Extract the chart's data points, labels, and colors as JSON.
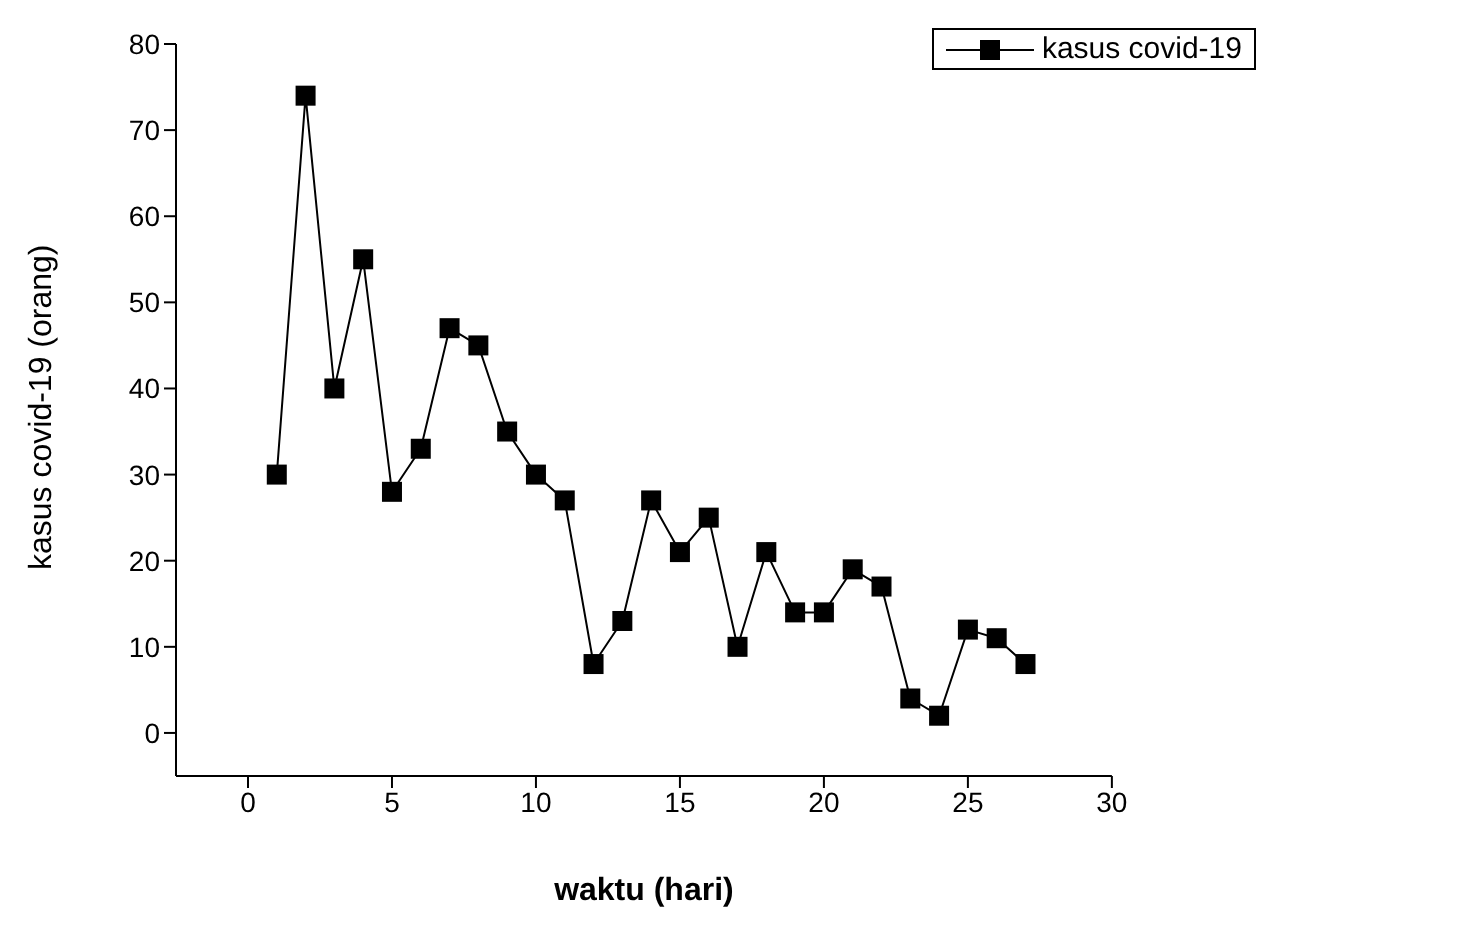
{
  "chart_data": {
    "type": "line",
    "xlabel": "waktu (hari)",
    "ylabel": "kasus covid-19 (orang)",
    "x": [
      1,
      2,
      3,
      4,
      5,
      6,
      7,
      8,
      9,
      10,
      11,
      12,
      13,
      14,
      15,
      16,
      17,
      18,
      19,
      20,
      21,
      22,
      23,
      24,
      25,
      26,
      27
    ],
    "series": [
      {
        "name": "kasus covid-19",
        "color": "#000000",
        "values": [
          30,
          74,
          40,
          55,
          28,
          33,
          47,
          45,
          35,
          30,
          27,
          8,
          13,
          27,
          21,
          25,
          10,
          21,
          14,
          14,
          19,
          17,
          4,
          2,
          12,
          11,
          8
        ]
      }
    ],
    "xlim": [
      -2.5,
      30
    ],
    "xticks": [
      0,
      5,
      10,
      15,
      20,
      25,
      30
    ],
    "ylim": [
      -5,
      80
    ],
    "yticks": [
      0,
      10,
      20,
      30,
      40,
      50,
      60,
      70,
      80
    ],
    "grid": false,
    "legend": "top right",
    "marker": "square",
    "line_style": "solid"
  }
}
